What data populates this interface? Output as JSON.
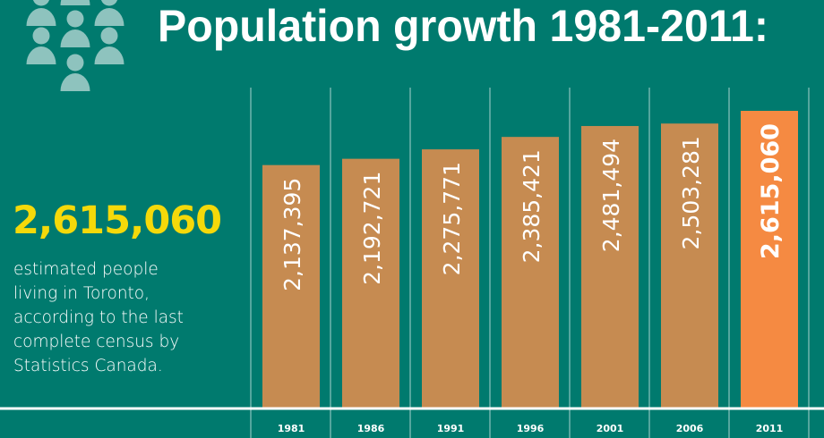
{
  "colors": {
    "background": "#007A6E",
    "bar": "#C68B51",
    "highlight_bar": "#F58A42",
    "headline_number": "#F5D90A",
    "icon": "#8EC3BE",
    "text": "#FFFFFF"
  },
  "icon": "people-group-icon",
  "headline": {
    "number": "2,615,060",
    "description_lines": [
      "estimated people",
      "living in Toronto,",
      "according to the last",
      "complete census by",
      "Statistics Canada."
    ]
  },
  "chart_data": {
    "type": "bar",
    "title": "Population growth 1981-2011:",
    "categories": [
      "1981",
      "1986",
      "1991",
      "1996",
      "2001",
      "2006",
      "2011"
    ],
    "values": [
      2137395,
      2192721,
      2275771,
      2385421,
      2481494,
      2503281,
      2615060
    ],
    "value_labels": [
      "2,137,395",
      "2,192,721",
      "2,275,771",
      "2,385,421",
      "2,481,494",
      "2,503,281",
      "2,615,060"
    ],
    "highlight_category": "2011",
    "ylim": [
      0,
      2820000
    ],
    "grid": "vertical separators",
    "orientation": "vertical bars, rotated value labels"
  }
}
